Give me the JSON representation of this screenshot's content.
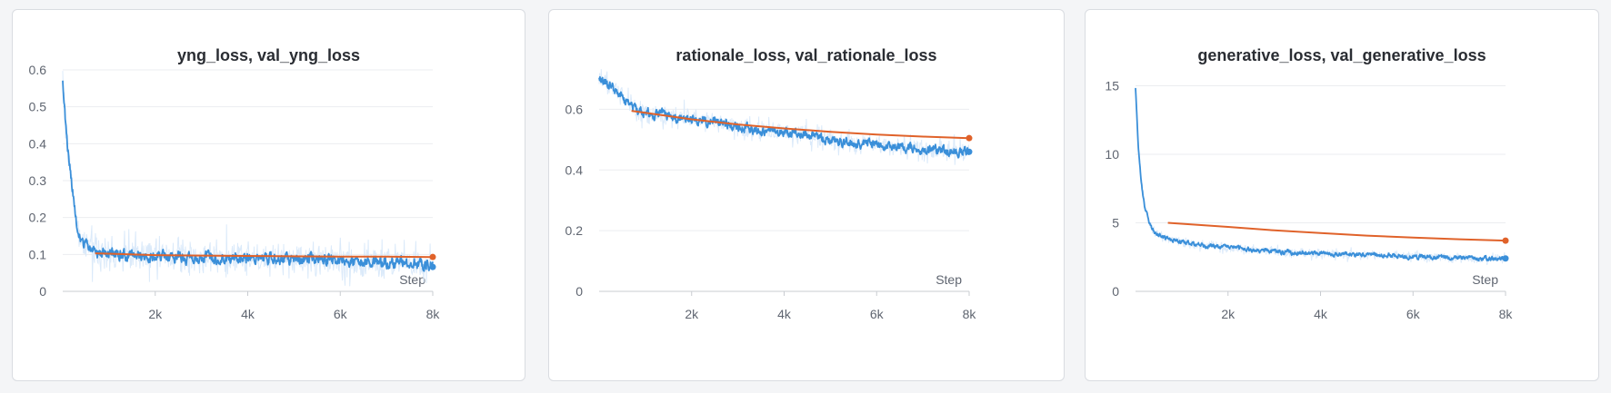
{
  "colors": {
    "train_line": "#3a8fd9",
    "train_band": "#dbeafa",
    "val_line": "#e0622a",
    "grid": "#ebedf0",
    "axis": "#c9ccd1"
  },
  "chart_data": [
    {
      "type": "line",
      "title": "yng_loss, val_yng_loss",
      "xlabel": "Step",
      "ylabel": "",
      "xlim": [
        0,
        8000
      ],
      "ylim": [
        0,
        0.6
      ],
      "x_ticks": [
        2000,
        4000,
        6000,
        8000
      ],
      "x_tick_labels": [
        "2k",
        "4k",
        "6k",
        "8k"
      ],
      "y_ticks": [
        0,
        0.1,
        0.2,
        0.3,
        0.4,
        0.5,
        0.6
      ],
      "y_tick_labels": [
        "0",
        "0.1",
        "0.2",
        "0.3",
        "0.4",
        "0.5",
        "0.6"
      ],
      "grid": true,
      "series": [
        {
          "id": "train",
          "x": [
            0,
            80,
            160,
            240,
            320,
            400,
            500,
            600,
            800,
            1000,
            1500,
            2000,
            2500,
            3000,
            3500,
            4000,
            4500,
            5000,
            5500,
            6000,
            6500,
            7000,
            7500,
            8000
          ],
          "values": [
            0.58,
            0.42,
            0.33,
            0.24,
            0.17,
            0.14,
            0.125,
            0.115,
            0.105,
            0.1,
            0.098,
            0.095,
            0.093,
            0.092,
            0.09,
            0.092,
            0.088,
            0.087,
            0.085,
            0.083,
            0.082,
            0.08,
            0.078,
            0.066
          ],
          "noise": 0.012,
          "band": 0.07
        },
        {
          "id": "val",
          "x": [
            700,
            2000,
            3000,
            4000,
            5000,
            6000,
            7000,
            8000
          ],
          "values": [
            0.103,
            0.098,
            0.097,
            0.096,
            0.095,
            0.094,
            0.094,
            0.093
          ]
        }
      ]
    },
    {
      "type": "line",
      "title": "rationale_loss, val_rationale_loss",
      "xlabel": "Step",
      "ylabel": "",
      "xlim": [
        0,
        8000
      ],
      "ylim": [
        0,
        0.7
      ],
      "x_ticks": [
        2000,
        4000,
        6000,
        8000
      ],
      "x_tick_labels": [
        "2k",
        "4k",
        "6k",
        "8k"
      ],
      "y_ticks": [
        0,
        0.2,
        0.4,
        0.6
      ],
      "y_tick_labels": [
        "0",
        "0.2",
        "0.4",
        "0.6"
      ],
      "grid": true,
      "series": [
        {
          "id": "train",
          "x": [
            0,
            200,
            400,
            600,
            800,
            1200,
            1600,
            2000,
            2500,
            3000,
            3500,
            4000,
            4500,
            5000,
            5500,
            6000,
            6500,
            7000,
            7500,
            8000
          ],
          "values": [
            0.695,
            0.685,
            0.66,
            0.62,
            0.6,
            0.585,
            0.575,
            0.57,
            0.56,
            0.54,
            0.53,
            0.525,
            0.515,
            0.5,
            0.49,
            0.485,
            0.475,
            0.47,
            0.465,
            0.46
          ],
          "noise": 0.012,
          "band": 0.05
        },
        {
          "id": "val",
          "x": [
            700,
            2000,
            3000,
            4000,
            5000,
            6000,
            7000,
            8000
          ],
          "values": [
            0.595,
            0.567,
            0.55,
            0.537,
            0.526,
            0.517,
            0.51,
            0.505
          ]
        }
      ]
    },
    {
      "type": "line",
      "title": "generative_loss, val_generative_loss",
      "xlabel": "Step",
      "ylabel": "",
      "xlim": [
        0,
        8000
      ],
      "ylim": [
        0,
        15.5
      ],
      "x_ticks": [
        2000,
        4000,
        6000,
        8000
      ],
      "x_tick_labels": [
        "2k",
        "4k",
        "6k",
        "8k"
      ],
      "y_ticks": [
        0,
        5,
        10,
        15
      ],
      "y_tick_labels": [
        "0",
        "5",
        "10",
        "15"
      ],
      "grid": true,
      "series": [
        {
          "id": "train",
          "x": [
            0,
            60,
            120,
            200,
            300,
            400,
            500,
            700,
            1000,
            1500,
            2000,
            2500,
            3000,
            3500,
            4000,
            4500,
            5000,
            5500,
            6000,
            6500,
            7000,
            7500,
            8000
          ],
          "values": [
            14.8,
            10.5,
            8.0,
            6.2,
            5.0,
            4.4,
            4.1,
            3.85,
            3.6,
            3.35,
            3.2,
            3.05,
            2.9,
            2.8,
            2.75,
            2.7,
            2.65,
            2.6,
            2.55,
            2.5,
            2.45,
            2.42,
            2.4
          ],
          "noise": 0.12,
          "band": 0.5
        },
        {
          "id": "val",
          "x": [
            700,
            2000,
            3000,
            4000,
            5000,
            6000,
            7000,
            8000
          ],
          "values": [
            5.0,
            4.7,
            4.45,
            4.25,
            4.07,
            3.92,
            3.8,
            3.7
          ]
        }
      ]
    }
  ]
}
